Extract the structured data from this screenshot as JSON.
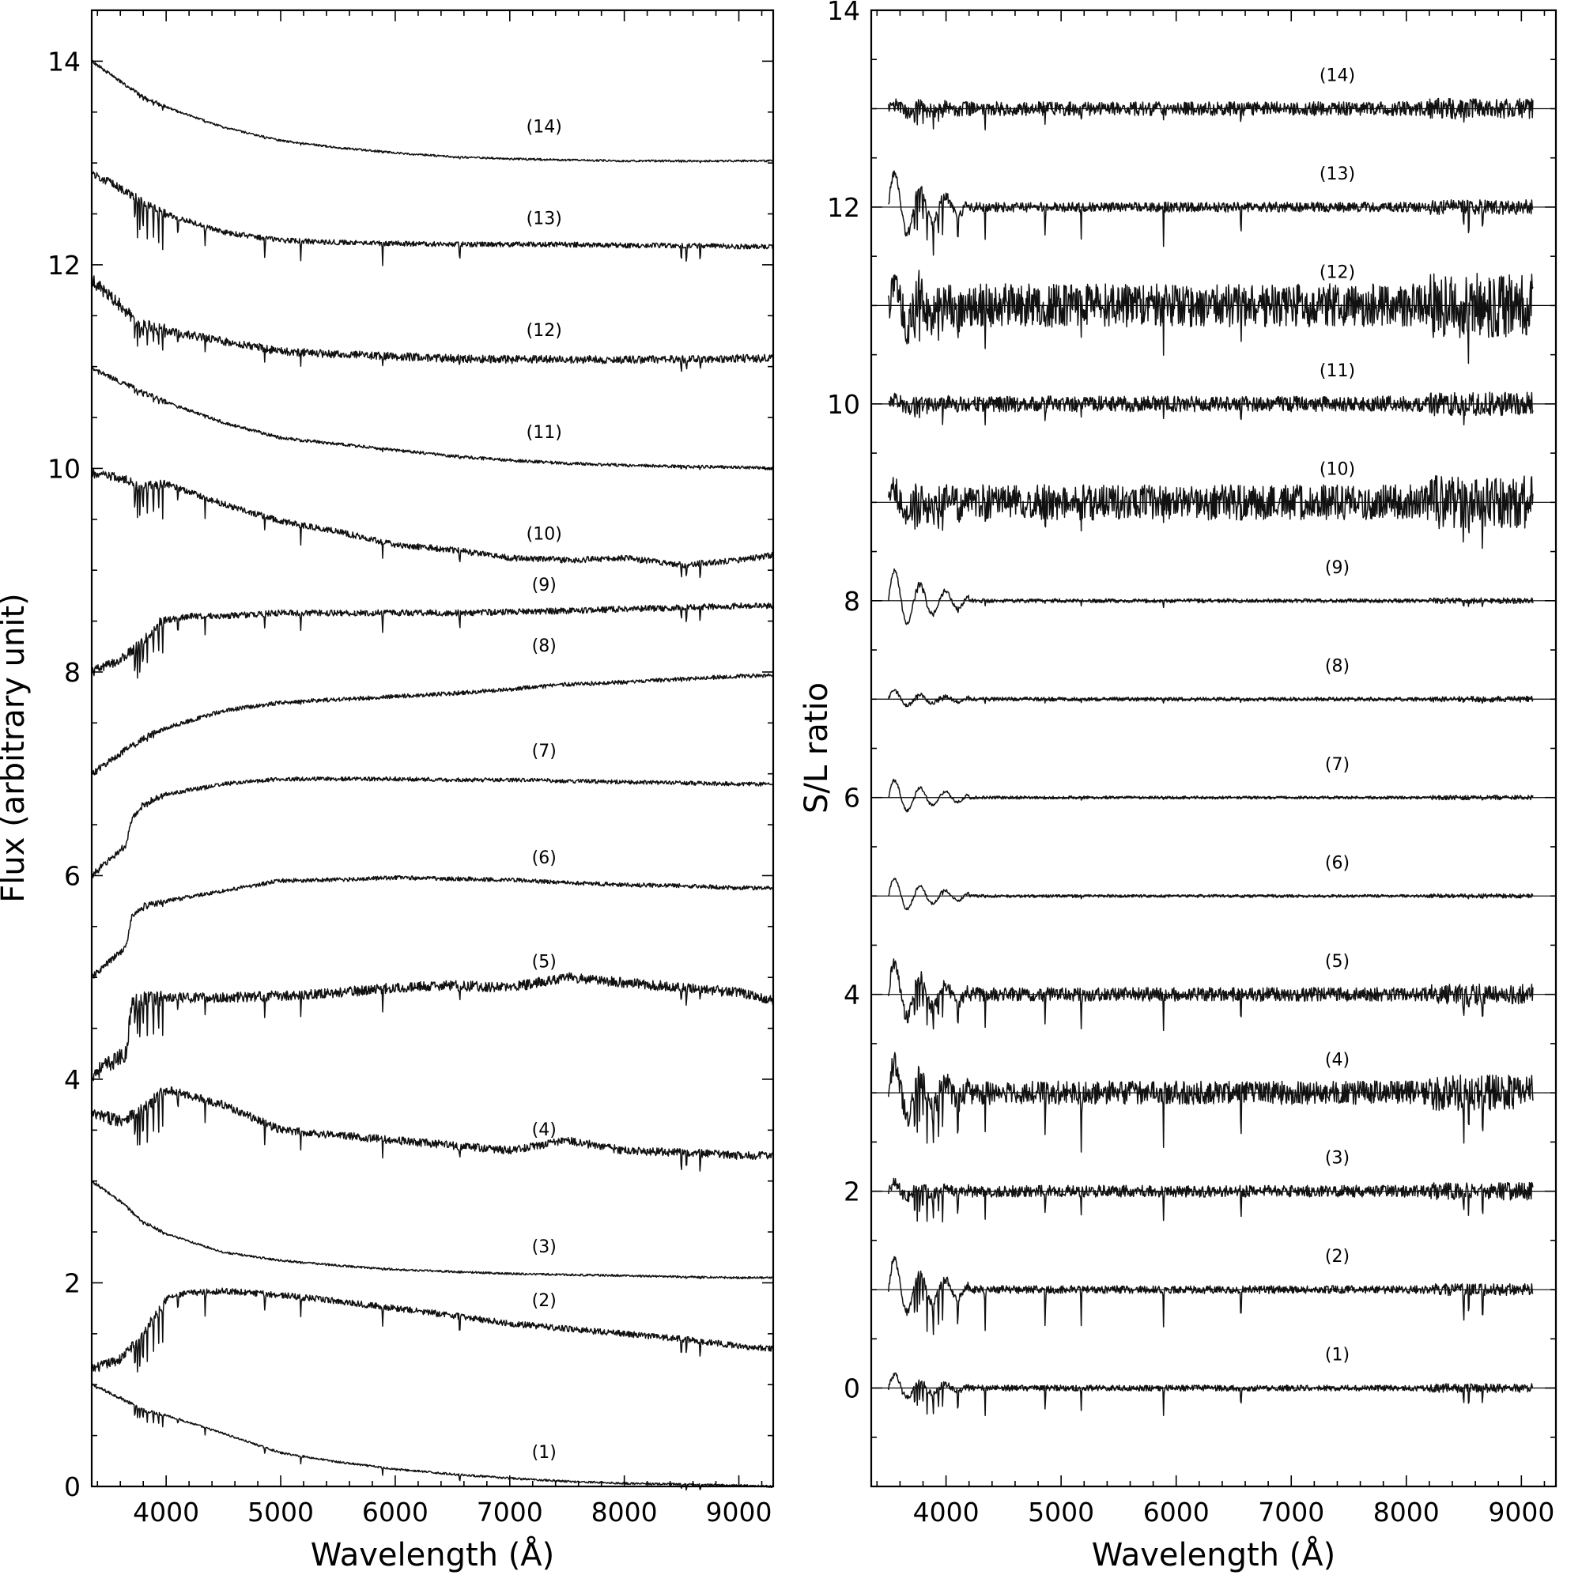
{
  "chart_data": [
    {
      "type": "line",
      "xlabel": "Wavelength (Å)",
      "ylabel": "Flux (arbitrary unit)",
      "xlim": [
        3350,
        9300
      ],
      "ylim": [
        0,
        14.5
      ],
      "xticks": [
        4000,
        5000,
        6000,
        7000,
        8000,
        9000
      ],
      "yticks": [
        0,
        2,
        4,
        6,
        8,
        10,
        12,
        14
      ],
      "label_x": 7300,
      "series": [
        {
          "name": "(1)",
          "label_y": 0.28,
          "x": [
            3350,
            3600,
            3800,
            4000,
            4500,
            5000,
            5500,
            6000,
            6500,
            7000,
            7500,
            8000,
            8500,
            9000,
            9300
          ],
          "values": [
            1.0,
            0.87,
            0.75,
            0.7,
            0.52,
            0.33,
            0.24,
            0.17,
            0.12,
            0.08,
            0.05,
            0.03,
            0.02,
            0.01,
            0.0
          ],
          "noise": 0.01,
          "absorb": 0.12
        },
        {
          "name": "(2)",
          "label_y": 1.77,
          "x": [
            3350,
            3600,
            3800,
            4000,
            4200,
            4500,
            5000,
            5500,
            6000,
            6500,
            7000,
            7500,
            8000,
            8500,
            9000,
            9300
          ],
          "values": [
            1.15,
            1.25,
            1.5,
            1.85,
            1.9,
            1.92,
            1.88,
            1.82,
            1.75,
            1.68,
            1.6,
            1.55,
            1.5,
            1.45,
            1.38,
            1.35
          ],
          "noise": 0.03,
          "absorb": 0.35
        },
        {
          "name": "(3)",
          "label_y": 2.3,
          "x": [
            3350,
            3600,
            3800,
            4000,
            4500,
            5000,
            5500,
            6000,
            6500,
            7000,
            7500,
            8000,
            8500,
            9000,
            9300
          ],
          "values": [
            3.0,
            2.8,
            2.6,
            2.48,
            2.3,
            2.22,
            2.17,
            2.13,
            2.11,
            2.09,
            2.08,
            2.07,
            2.06,
            2.05,
            2.05
          ],
          "noise": 0.01,
          "absorb": 0.02
        },
        {
          "name": "(4)",
          "label_y": 3.45,
          "x": [
            3350,
            3600,
            3800,
            4000,
            4500,
            5000,
            5500,
            6000,
            6500,
            7000,
            7500,
            8000,
            8500,
            9000,
            9300
          ],
          "values": [
            3.65,
            3.6,
            3.7,
            3.9,
            3.75,
            3.5,
            3.45,
            3.4,
            3.35,
            3.3,
            3.4,
            3.3,
            3.28,
            3.25,
            3.25
          ],
          "noise": 0.04,
          "absorb": 0.35
        },
        {
          "name": "(5)",
          "label_y": 5.1,
          "x": [
            3350,
            3500,
            3650,
            3700,
            3800,
            4000,
            4500,
            5000,
            5500,
            6000,
            6500,
            7000,
            7500,
            8000,
            8500,
            9000,
            9300
          ],
          "values": [
            4.05,
            4.15,
            4.25,
            4.75,
            4.8,
            4.8,
            4.8,
            4.82,
            4.85,
            4.9,
            4.92,
            4.9,
            5.0,
            4.95,
            4.9,
            4.85,
            4.78
          ],
          "noise": 0.05,
          "absorb": 0.35
        },
        {
          "name": "(6)",
          "label_y": 6.12,
          "x": [
            3350,
            3500,
            3650,
            3700,
            3800,
            4000,
            4500,
            5000,
            5500,
            6000,
            6500,
            7000,
            7500,
            8000,
            8500,
            9000,
            9300
          ],
          "values": [
            5.0,
            5.15,
            5.3,
            5.6,
            5.7,
            5.75,
            5.85,
            5.95,
            5.96,
            5.98,
            5.97,
            5.96,
            5.93,
            5.91,
            5.9,
            5.88,
            5.88
          ],
          "noise": 0.02,
          "absorb": 0.02
        },
        {
          "name": "(7)",
          "label_y": 7.17,
          "x": [
            3350,
            3500,
            3650,
            3700,
            3800,
            4000,
            4500,
            5000,
            5500,
            6000,
            6500,
            7000,
            7500,
            8000,
            8500,
            9000,
            9300
          ],
          "values": [
            6.0,
            6.15,
            6.3,
            6.55,
            6.7,
            6.8,
            6.9,
            6.95,
            6.95,
            6.95,
            6.94,
            6.94,
            6.93,
            6.92,
            6.91,
            6.9,
            6.9
          ],
          "noise": 0.02,
          "absorb": 0.02
        },
        {
          "name": "(8)",
          "label_y": 8.2,
          "x": [
            3350,
            3600,
            3800,
            4000,
            4500,
            5000,
            5500,
            6000,
            6500,
            7000,
            7500,
            8000,
            8500,
            9000,
            9300
          ],
          "values": [
            7.0,
            7.2,
            7.35,
            7.45,
            7.62,
            7.7,
            7.73,
            7.76,
            7.79,
            7.83,
            7.88,
            7.9,
            7.93,
            7.96,
            7.97
          ],
          "noise": 0.02,
          "absorb": 0.02
        },
        {
          "name": "(9)",
          "label_y": 8.8,
          "x": [
            3350,
            3600,
            3800,
            3950,
            4200,
            4500,
            5000,
            5500,
            6000,
            6500,
            7000,
            7500,
            8000,
            8500,
            9000,
            9300
          ],
          "values": [
            8.0,
            8.12,
            8.3,
            8.5,
            8.55,
            8.55,
            8.58,
            8.58,
            8.58,
            8.58,
            8.59,
            8.6,
            8.62,
            8.63,
            8.65,
            8.65
          ],
          "noise": 0.03,
          "absorb": 0.3
        },
        {
          "name": "(10)",
          "label_y": 9.3,
          "x": [
            3350,
            3600,
            3800,
            4000,
            4500,
            5000,
            5500,
            6000,
            6500,
            7000,
            7500,
            8000,
            8500,
            9000,
            9300
          ],
          "values": [
            9.95,
            9.9,
            9.82,
            9.85,
            9.65,
            9.48,
            9.38,
            9.25,
            9.2,
            9.12,
            9.1,
            9.12,
            9.05,
            9.1,
            9.15
          ],
          "noise": 0.03,
          "absorb": 0.3
        },
        {
          "name": "(11)",
          "label_y": 10.3,
          "x": [
            3350,
            3600,
            3800,
            4000,
            4500,
            5000,
            5500,
            6000,
            6500,
            7000,
            7500,
            8000,
            8500,
            9000,
            9300
          ],
          "values": [
            10.98,
            10.85,
            10.75,
            10.65,
            10.45,
            10.3,
            10.24,
            10.18,
            10.12,
            10.08,
            10.05,
            10.03,
            10.02,
            10.01,
            10.0
          ],
          "noise": 0.015,
          "absorb": 0.04
        },
        {
          "name": "(12)",
          "label_y": 11.3,
          "x": [
            3350,
            3600,
            3800,
            4000,
            4500,
            5000,
            5500,
            6000,
            6500,
            7000,
            7500,
            8000,
            8500,
            9000,
            9300
          ],
          "values": [
            11.85,
            11.6,
            11.4,
            11.35,
            11.25,
            11.15,
            11.12,
            11.1,
            11.08,
            11.07,
            11.07,
            11.07,
            11.07,
            11.08,
            11.08
          ],
          "noise": 0.04,
          "absorb": 0.2
        },
        {
          "name": "(13)",
          "label_y": 12.4,
          "x": [
            3350,
            3600,
            3800,
            4000,
            4500,
            5000,
            5500,
            6000,
            6500,
            7000,
            7500,
            8000,
            8500,
            9000,
            9300
          ],
          "values": [
            12.9,
            12.75,
            12.62,
            12.5,
            12.32,
            12.24,
            12.22,
            12.21,
            12.2,
            12.2,
            12.2,
            12.19,
            12.19,
            12.18,
            12.18
          ],
          "noise": 0.025,
          "absorb": 0.35
        },
        {
          "name": "(14)",
          "label_y": 13.3,
          "x": [
            3350,
            3600,
            3800,
            4000,
            4500,
            5000,
            5500,
            6000,
            6500,
            7000,
            7500,
            8000,
            8500,
            9000,
            9300
          ],
          "values": [
            14.0,
            13.8,
            13.65,
            13.55,
            13.35,
            13.22,
            13.15,
            13.1,
            13.06,
            13.04,
            13.03,
            13.02,
            13.02,
            13.02,
            13.02
          ],
          "noise": 0.01,
          "absorb": 0.03
        }
      ]
    },
    {
      "type": "line",
      "xlabel": "Wavelength (Å)",
      "ylabel": "S/L ratio",
      "xlim": [
        3350,
        9300
      ],
      "ylim": [
        -1,
        14
      ],
      "xticks": [
        4000,
        5000,
        6000,
        7000,
        8000,
        9000
      ],
      "yticks": [
        0,
        2,
        4,
        6,
        8,
        10,
        12,
        14
      ],
      "x_range": [
        3500,
        9100
      ],
      "label_x": 7400,
      "series": [
        {
          "name": "(1)",
          "offset": 0,
          "label_y": 0.28,
          "noise": 0.03,
          "early": 0.15,
          "absorb": 0.25
        },
        {
          "name": "(2)",
          "offset": 1,
          "label_y": 1.28,
          "noise": 0.04,
          "early": 0.35,
          "absorb": 0.4
        },
        {
          "name": "(3)",
          "offset": 2,
          "label_y": 2.28,
          "noise": 0.06,
          "early": 0.1,
          "absorb": 0.3
        },
        {
          "name": "(4)",
          "offset": 3,
          "label_y": 3.28,
          "noise": 0.12,
          "early": 0.35,
          "absorb": 0.5
        },
        {
          "name": "(5)",
          "offset": 4,
          "label_y": 4.28,
          "noise": 0.07,
          "early": 0.35,
          "absorb": 0.3
        },
        {
          "name": "(6)",
          "offset": 5,
          "label_y": 5.28,
          "noise": 0.015,
          "early": 0.2,
          "absorb": 0.02
        },
        {
          "name": "(7)",
          "offset": 6,
          "label_y": 6.28,
          "noise": 0.015,
          "early": 0.2,
          "absorb": 0.02
        },
        {
          "name": "(8)",
          "offset": 7,
          "label_y": 7.28,
          "noise": 0.02,
          "early": 0.1,
          "absorb": 0.03
        },
        {
          "name": "(9)",
          "offset": 8,
          "label_y": 8.28,
          "noise": 0.02,
          "early": 0.35,
          "absorb": 0.05
        },
        {
          "name": "(10)",
          "offset": 9,
          "label_y": 9.28,
          "noise": 0.18,
          "early": 0.15,
          "absorb": 0.3
        },
        {
          "name": "(11)",
          "offset": 10,
          "label_y": 10.28,
          "noise": 0.08,
          "early": 0.05,
          "absorb": 0.15
        },
        {
          "name": "(12)",
          "offset": 11,
          "label_y": 11.28,
          "noise": 0.22,
          "early": 0.3,
          "absorb": 0.4
        },
        {
          "name": "(13)",
          "offset": 12,
          "label_y": 12.28,
          "noise": 0.05,
          "early": 0.4,
          "absorb": 0.35
        },
        {
          "name": "(14)",
          "offset": 13,
          "label_y": 13.28,
          "noise": 0.07,
          "early": 0.05,
          "absorb": 0.15
        }
      ]
    }
  ]
}
